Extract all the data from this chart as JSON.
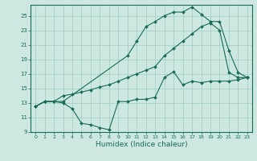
{
  "xlabel": "Humidex (Indice chaleur)",
  "bg_color": "#cce8e0",
  "grid_color": "#9ecdc2",
  "line_color": "#1a6b5a",
  "xlim": [
    -0.5,
    23.5
  ],
  "ylim": [
    9,
    26.5
  ],
  "yticks": [
    9,
    11,
    13,
    15,
    17,
    19,
    21,
    23,
    25
  ],
  "xticks": [
    0,
    1,
    2,
    3,
    4,
    5,
    6,
    7,
    8,
    9,
    10,
    11,
    12,
    13,
    14,
    15,
    16,
    17,
    18,
    19,
    20,
    21,
    22,
    23
  ],
  "series1_x": [
    0,
    1,
    2,
    3,
    4,
    5,
    6,
    7,
    8,
    9,
    10,
    11,
    12,
    13,
    14,
    15,
    16,
    17,
    18,
    19,
    20,
    21,
    22,
    23
  ],
  "series1_y": [
    12.5,
    13.2,
    13.2,
    13.0,
    12.2,
    10.2,
    10.0,
    9.6,
    9.3,
    13.2,
    13.2,
    13.5,
    13.5,
    13.8,
    16.5,
    17.3,
    15.5,
    16.0,
    15.8,
    16.0,
    16.0,
    16.0,
    16.2,
    16.5
  ],
  "series2_x": [
    0,
    1,
    2,
    3,
    4,
    5,
    6,
    7,
    8,
    9,
    10,
    11,
    12,
    13,
    14,
    15,
    16,
    17,
    18,
    19,
    20,
    21,
    22,
    23
  ],
  "series2_y": [
    12.5,
    13.2,
    13.2,
    14.0,
    14.2,
    14.5,
    14.8,
    15.2,
    15.5,
    16.0,
    16.5,
    17.0,
    17.5,
    18.0,
    19.5,
    20.5,
    21.5,
    22.5,
    23.5,
    24.0,
    23.0,
    17.2,
    16.5,
    16.5
  ],
  "series3_x": [
    0,
    1,
    2,
    3,
    10,
    11,
    12,
    13,
    14,
    15,
    16,
    17,
    18,
    19,
    20,
    21,
    22,
    23
  ],
  "series3_y": [
    12.5,
    13.2,
    13.2,
    13.2,
    19.5,
    21.5,
    23.5,
    24.2,
    25.0,
    25.5,
    25.5,
    26.2,
    25.2,
    24.2,
    24.2,
    20.2,
    17.2,
    16.5
  ]
}
